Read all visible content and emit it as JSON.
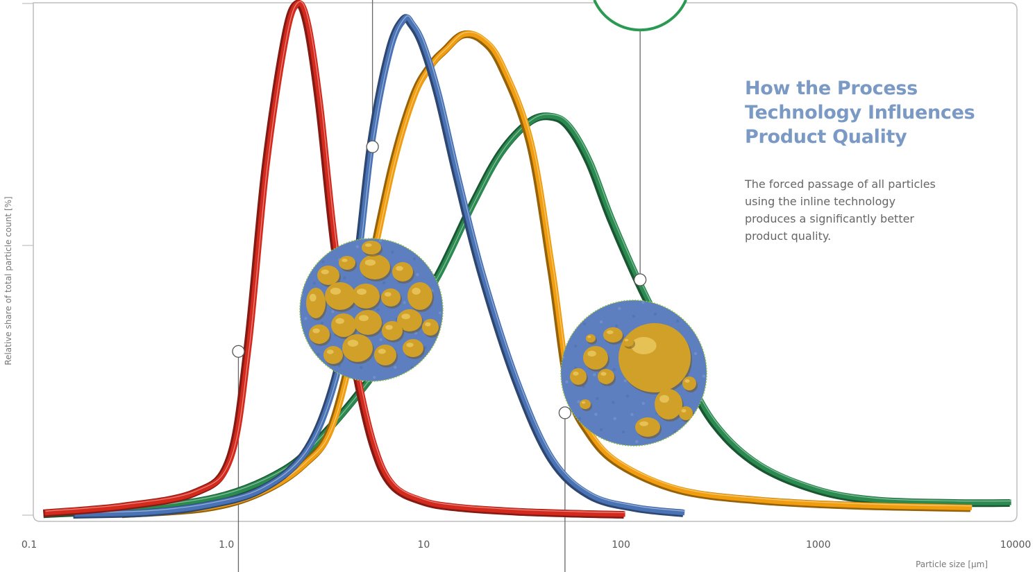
{
  "chart_data": {
    "type": "line",
    "title_lines": [
      "How the Process",
      "Technology Influences",
      "Product Quality"
    ],
    "description_lines": [
      "The forced passage of all particles",
      "using the inline technology",
      "produces a significantly better",
      "product quality."
    ],
    "xlabel": "Particle size [µm]",
    "ylabel": "Relative share of total particle count [%]",
    "x_scale": "log",
    "xlim": [
      0.1,
      10000
    ],
    "x_ticks": [
      0.1,
      1,
      10,
      100,
      1000,
      10000
    ],
    "x_tick_labels": [
      "0.1",
      "1.0",
      "10",
      "100",
      "1000",
      "10000"
    ],
    "y_ticks_labeled": false,
    "grid": false,
    "series": [
      {
        "color": "#d42a1e",
        "x": [
          0.12,
          0.3,
          0.7,
          1.05,
          1.3,
          1.6,
          2.0,
          2.3,
          2.6,
          3.0,
          3.6,
          4.5,
          5.6,
          7.0,
          10,
          15,
          30,
          60,
          105
        ],
        "y": [
          0.5,
          1.8,
          4.5,
          11.0,
          33.0,
          68.0,
          93.0,
          100.0,
          96.0,
          80.0,
          52.0,
          30.0,
          14.0,
          6.0,
          2.8,
          1.6,
          0.8,
          0.4,
          0.2
        ]
      },
      {
        "color": "#4a73b5",
        "x": [
          0.17,
          0.4,
          0.8,
          1.5,
          2.5,
          3.5,
          4.5,
          5.5,
          6.8,
          8.0,
          8.8,
          10,
          12,
          15,
          20,
          30,
          45,
          70,
          120,
          210
        ],
        "y": [
          0.2,
          0.6,
          2.0,
          5.0,
          12.0,
          25.0,
          45.0,
          73.0,
          91.0,
          97.0,
          96.0,
          92.0,
          82.0,
          66.0,
          47.0,
          26.0,
          11.0,
          4.0,
          1.5,
          0.5
        ]
      },
      {
        "color": "#f09e10",
        "x": [
          0.3,
          0.8,
          1.5,
          2.5,
          3.5,
          5.0,
          7.0,
          9.0,
          11,
          13,
          16,
          20,
          25,
          35,
          45,
          55,
          70,
          100,
          200,
          500,
          1500,
          6000
        ],
        "y": [
          0.3,
          1.5,
          4.5,
          10.0,
          18.0,
          42.0,
          68.0,
          82.0,
          88.0,
          91.0,
          94.0,
          93.0,
          88.0,
          73.0,
          48.0,
          25.0,
          16.0,
          10.0,
          5.0,
          3.0,
          2.0,
          1.5
        ]
      },
      {
        "color": "#2a8a50",
        "x": [
          0.12,
          0.4,
          1.0,
          2.0,
          3.0,
          5.0,
          8.0,
          12,
          18,
          25,
          35,
          45,
          55,
          70,
          90,
          130,
          200,
          300,
          500,
          1000,
          2000,
          5000,
          9500
        ],
        "y": [
          0.3,
          1.5,
          4.0,
          9.0,
          15.0,
          25.0,
          36.0,
          47.0,
          61.0,
          71.0,
          77.0,
          78.0,
          76.0,
          69.0,
          58.0,
          44.0,
          30.0,
          18.0,
          10.0,
          5.0,
          3.0,
          2.5,
          2.5
        ]
      }
    ],
    "callout_lines": [
      {
        "x": 1.15,
        "y": 32
      },
      {
        "x": 5.5,
        "y": 72
      },
      {
        "x": 52,
        "y": 20
      },
      {
        "x": 125,
        "y": 46
      }
    ]
  }
}
